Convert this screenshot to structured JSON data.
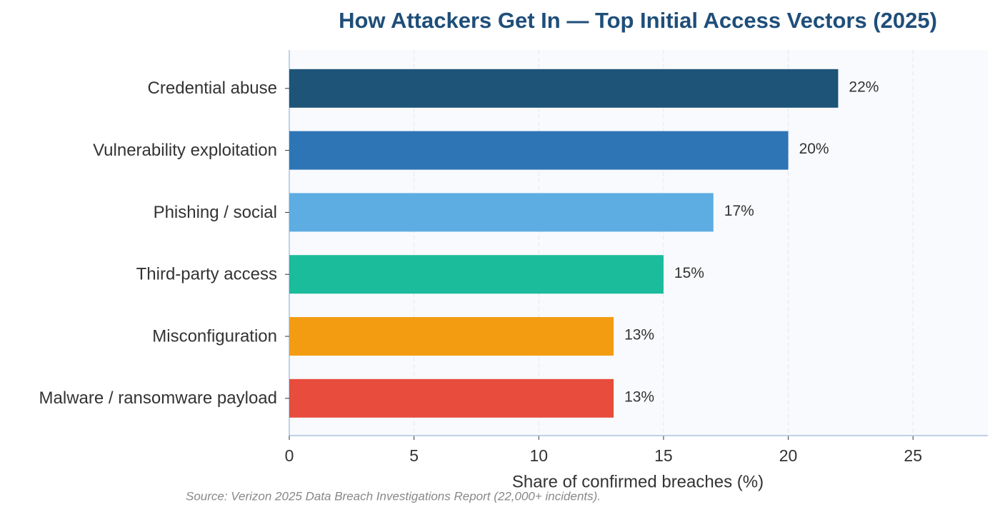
{
  "chart_data": {
    "type": "barh",
    "title": "How Attackers Get In — Top Initial Access Vectors (2025)",
    "x_label": "Share of confirmed breaches (%)",
    "source": "Source: Verizon 2025 Data Breach Investigations Report (22,000+ incidents).",
    "categories": [
      "Credential abuse",
      "Vulnerability exploitation",
      "Phishing / social",
      "Third-party access",
      "Misconfiguration",
      "Malware / ransomware payload"
    ],
    "values": [
      22,
      20,
      17,
      15,
      13,
      13
    ],
    "value_labels": [
      "22%",
      "20%",
      "17%",
      "15%",
      "13%",
      "13%"
    ],
    "colors": [
      "#1d5478",
      "#2e75b6",
      "#5dade2",
      "#1abc9c",
      "#f39c12",
      "#e74c3c"
    ],
    "xlim": [
      0,
      28
    ],
    "xticks": [
      0,
      5,
      10,
      15,
      20,
      25
    ],
    "grid": true
  }
}
